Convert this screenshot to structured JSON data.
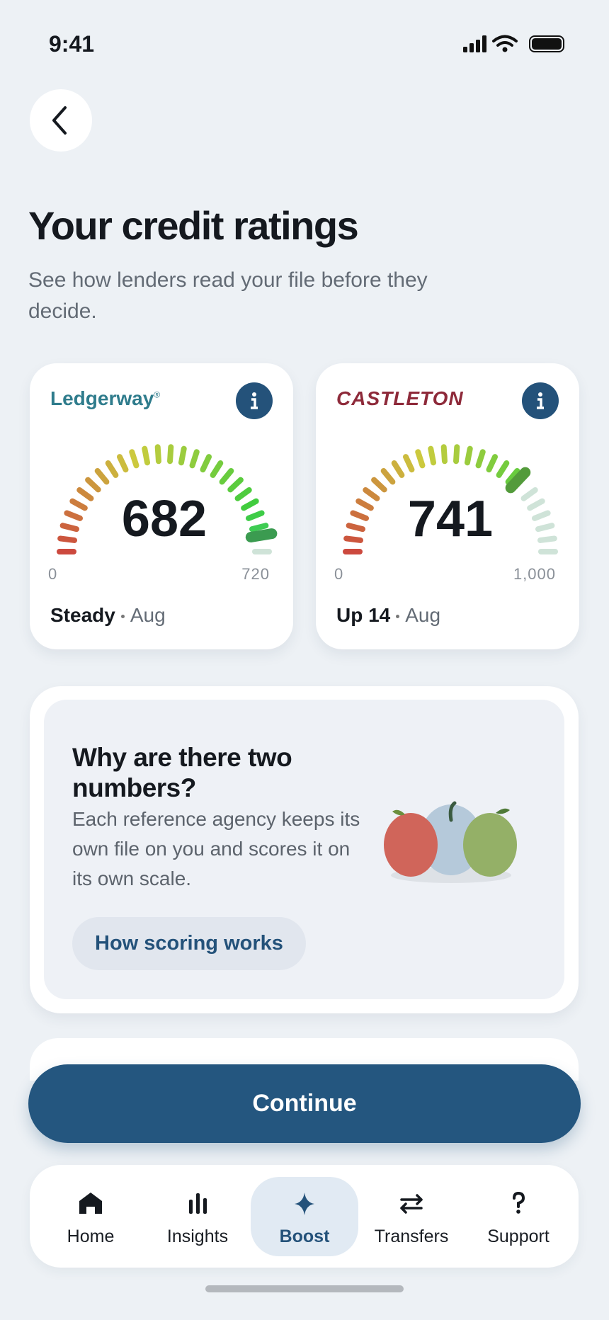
{
  "status_bar": {
    "time": "9:41"
  },
  "header": {
    "title": "Your credit ratings",
    "subtitle": "See how lenders read your file before they decide."
  },
  "ratings": [
    {
      "agency": "Ledgerway",
      "agency_mark": "®",
      "score": 682,
      "scale": [
        0,
        720
      ],
      "trend": "Steady",
      "period": "Aug"
    },
    {
      "agency": "CASTLETON",
      "score": 741,
      "scale": [
        0,
        {
          "value": 1000,
          "label": "1,000"
        }
      ],
      "trend": "Up 14",
      "period": "Aug"
    }
  ],
  "info": {
    "title": "Why are there two numbers?",
    "body": "Each reference agency keeps its own file on you and scores it on its own scale.",
    "link": "How scoring works"
  },
  "button": "Continue",
  "nav": [
    {
      "label": "Home",
      "active": false
    },
    {
      "label": "Insights",
      "active": false
    },
    {
      "label": "Boost",
      "active": true
    },
    {
      "label": "Transfers",
      "active": false
    },
    {
      "label": "Support",
      "active": false
    }
  ]
}
